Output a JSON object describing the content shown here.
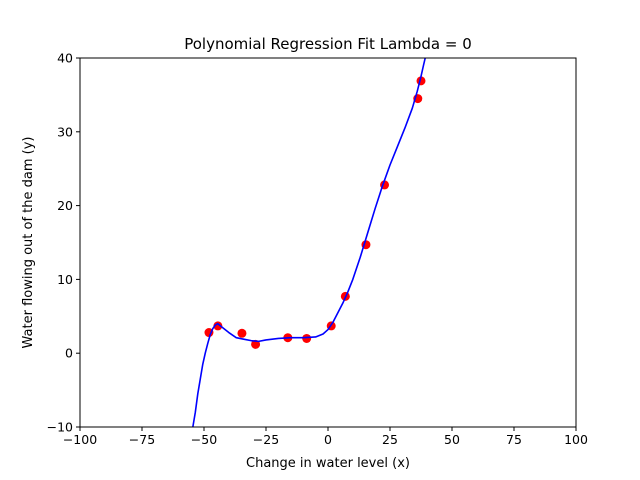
{
  "chart_data": {
    "type": "scatter",
    "title": "Polynomial Regression Fit Lambda = 0",
    "xlabel": "Change in water level (x)",
    "ylabel": "Water flowing out of the dam (y)",
    "xlim": [
      -100,
      100
    ],
    "ylim": [
      -10,
      40
    ],
    "xticks": [
      -100,
      -75,
      -50,
      -25,
      0,
      25,
      50,
      75,
      100
    ],
    "xtick_labels": [
      "−100",
      "−75",
      "−50",
      "−25",
      "0",
      "25",
      "50",
      "75",
      "100"
    ],
    "yticks": [
      -10,
      0,
      10,
      20,
      30,
      40
    ],
    "ytick_labels": [
      "−10",
      "0",
      "10",
      "20",
      "30",
      "40"
    ],
    "grid": false,
    "series": [
      {
        "kind": "scatter",
        "color": "#ff0000",
        "x": [
          -48,
          -44.4,
          -34.7,
          -29.2,
          -16.2,
          -8.6,
          1.3,
          7.0,
          15.3,
          22.8,
          36.2,
          37.5
        ],
        "y": [
          2.8,
          3.7,
          2.7,
          1.2,
          2.1,
          2.0,
          3.7,
          7.7,
          14.7,
          22.8,
          34.5,
          36.9
        ]
      },
      {
        "kind": "line",
        "color": "#0000ff",
        "x": [
          -54.5,
          -53.5,
          -52.5,
          -51.5,
          -50.5,
          -49.5,
          -48.5,
          -47.5,
          -46.5,
          -45.5,
          -44.5,
          -43,
          -40,
          -37,
          -34,
          -31,
          -28,
          -25,
          -20,
          -15,
          -10,
          -5,
          -2,
          0,
          2,
          4,
          6,
          8,
          10,
          13,
          16,
          19,
          22,
          25,
          28,
          31,
          34,
          36,
          37.5,
          38.5,
          39.2
        ],
        "y": [
          -10,
          -8,
          -5.5,
          -3.5,
          -1.5,
          0,
          1.3,
          2.5,
          3.3,
          3.8,
          4.0,
          3.6,
          2.8,
          2.1,
          1.9,
          1.7,
          1.6,
          1.8,
          2.0,
          2.1,
          2.1,
          2.2,
          2.6,
          3.2,
          4.2,
          5.5,
          6.8,
          8.3,
          10.0,
          13.0,
          16.3,
          19.6,
          22.7,
          25.5,
          28.0,
          30.5,
          33.2,
          35.5,
          37.5,
          39.0,
          40.0
        ]
      }
    ]
  }
}
